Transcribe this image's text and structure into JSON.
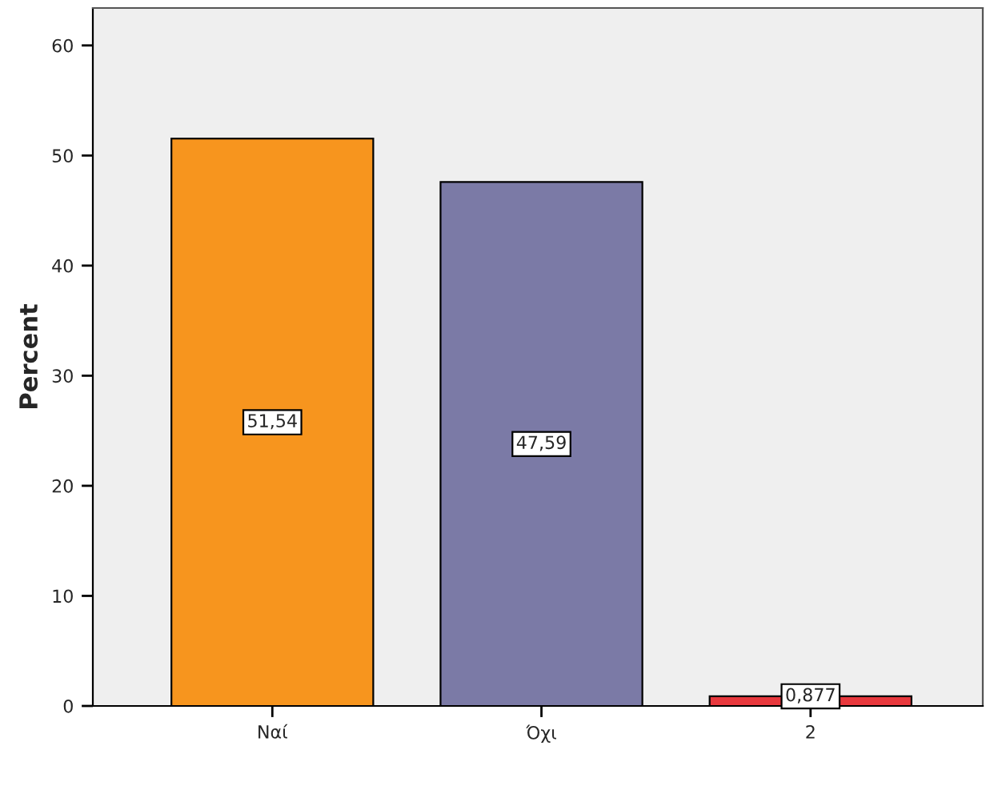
{
  "chart_data": {
    "type": "bar",
    "ylabel": "Percent",
    "categories": [
      "Ναί",
      "Όχι",
      "2"
    ],
    "values": [
      51.54,
      47.59,
      0.877
    ],
    "colors": [
      "#f7951e",
      "#7b7aa6",
      "#e8383d"
    ],
    "value_labels": [
      "51,54",
      "47,59",
      "0,877"
    ],
    "ylim": [
      0,
      63.4
    ],
    "yticks": [
      0,
      10,
      20,
      30,
      40,
      50,
      60
    ],
    "grid": false,
    "legend": false
  }
}
